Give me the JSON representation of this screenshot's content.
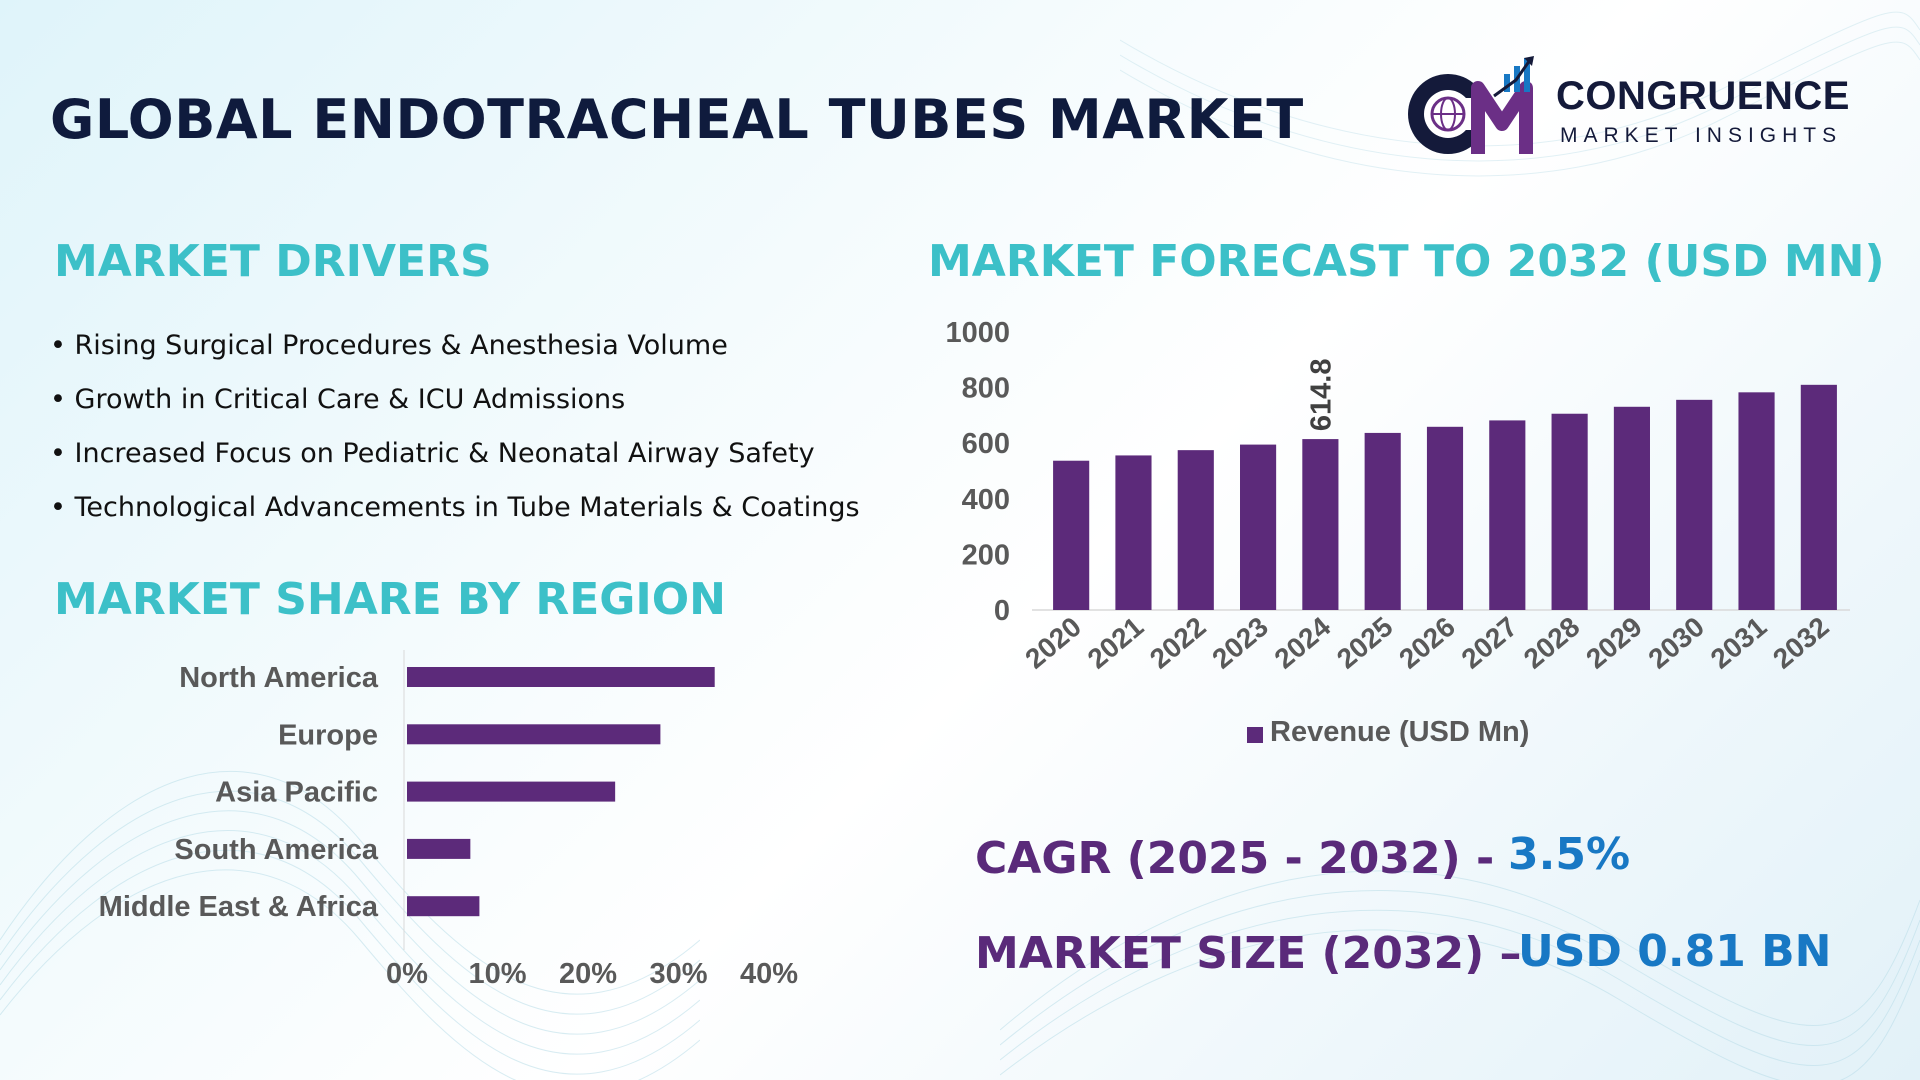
{
  "header": {
    "title": "GLOBAL ENDOTRACHEAL TUBES MARKET",
    "logo_name": "CONGRUENCE",
    "logo_tagline": "MARKET INSIGHTS"
  },
  "drivers": {
    "heading": "MARKET DRIVERS",
    "items": [
      "Rising Surgical Procedures & Anesthesia Volume",
      "Growth in Critical Care & ICU Admissions",
      "Increased Focus on Pediatric & Neonatal Airway Safety",
      "Technological Advancements in Tube Materials & Coatings"
    ]
  },
  "region": {
    "heading": "MARKET SHARE BY REGION"
  },
  "forecast": {
    "heading": "MARKET FORECAST TO 2032 (USD MN)"
  },
  "metrics": {
    "cagr_label": "CAGR (2025 - 2032) -",
    "cagr_value": "3.5%",
    "size_label": "MARKET SIZE (2032) –",
    "size_value": "USD 0.81 BN"
  },
  "colors": {
    "bar": "#5c2a7a",
    "heading": "#3cc0c8",
    "title": "#0f1b3d",
    "metric_label": "#5a2a7a",
    "metric_value": "#1878c4",
    "axis_text": "#595959"
  },
  "chart_data": [
    {
      "type": "bar",
      "orientation": "horizontal",
      "categories": [
        "North America",
        "Europe",
        "Asia Pacific",
        "South America",
        "Middle East & Africa"
      ],
      "values": [
        34,
        28,
        23,
        7,
        8
      ],
      "unit": "%",
      "xlim": [
        0,
        40
      ],
      "xticks": [
        "0%",
        "10%",
        "20%",
        "30%",
        "40%"
      ],
      "grid": false,
      "legend": "none"
    },
    {
      "type": "bar",
      "categories": [
        "2020",
        "2021",
        "2022",
        "2023",
        "2024",
        "2025",
        "2026",
        "2027",
        "2028",
        "2029",
        "2030",
        "2031",
        "2032"
      ],
      "series": [
        {
          "name": "Revenue (USD Mn)",
          "values": [
            537,
            556,
            575,
            595,
            614.8,
            637,
            659,
            682,
            706,
            731,
            756,
            783,
            810
          ]
        }
      ],
      "data_labels": [
        {
          "category": "2024",
          "label": "614.8"
        }
      ],
      "ylim": [
        0,
        1000
      ],
      "yticks": [
        "0",
        "200",
        "400",
        "600",
        "800",
        "1000"
      ],
      "grid": false,
      "legend": "bottom"
    }
  ]
}
